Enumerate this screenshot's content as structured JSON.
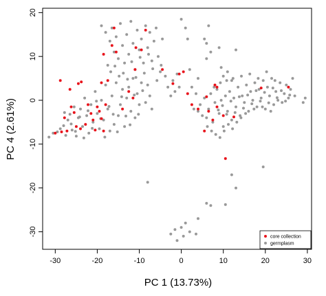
{
  "chart_data": {
    "type": "scatter",
    "title": "",
    "xlabel": "PC 1 (13.73%)",
    "ylabel": "PC 4 (2.61%)",
    "xlim": [
      -33,
      31
    ],
    "ylim": [
      -34,
      21
    ],
    "x_ticks": [
      -30,
      -20,
      -10,
      0,
      10,
      20,
      30
    ],
    "y_ticks": [
      -30,
      -20,
      -10,
      0,
      10,
      20
    ],
    "x_tick_labels": [
      "-30",
      "-20",
      "-10",
      "0",
      "10",
      "20",
      "30"
    ],
    "y_tick_labels": [
      "-30",
      "-20",
      "-10",
      "0",
      "10",
      "20"
    ],
    "grid": false,
    "legend": {
      "placement": "bottom-right",
      "entries": [
        {
          "label": "core collection",
          "color": "#e8141c"
        },
        {
          "label": "germplasm",
          "color": "#999999"
        }
      ]
    },
    "series": [
      {
        "name": "germplasm",
        "color": "#999999",
        "points": [
          [
            -31.5,
            -8.4
          ],
          [
            -30.5,
            -7.5
          ],
          [
            -29.5,
            -7.2
          ],
          [
            -28.8,
            -6.5
          ],
          [
            -28,
            -5.8
          ],
          [
            -27.5,
            -8
          ],
          [
            -27,
            -4.5
          ],
          [
            -26.5,
            -3.2
          ],
          [
            -26,
            -6.8
          ],
          [
            -25.5,
            -1.5
          ],
          [
            -25,
            -8.2
          ],
          [
            -24.5,
            -4
          ],
          [
            -24,
            -2
          ],
          [
            -23.5,
            -6
          ],
          [
            -23,
            0.5
          ],
          [
            -22.5,
            -3.5
          ],
          [
            -22,
            -7.5
          ],
          [
            -21.5,
            -1
          ],
          [
            -21,
            -5
          ],
          [
            -20.5,
            2
          ],
          [
            -20,
            -3
          ],
          [
            -19.5,
            -6.5
          ],
          [
            -19,
            0
          ],
          [
            -18.5,
            -4.5
          ],
          [
            -18,
            3.5
          ],
          [
            -17.5,
            -2
          ],
          [
            -17,
            -7
          ],
          [
            -16.5,
            1
          ],
          [
            -16,
            -5.5
          ],
          [
            -15.5,
            4
          ],
          [
            -15,
            -3.5
          ],
          [
            -14.5,
            -1
          ],
          [
            -14,
            2.5
          ],
          [
            -13.5,
            -6
          ],
          [
            -13,
            0.5
          ],
          [
            -12.5,
            3
          ],
          [
            -12,
            -2.5
          ],
          [
            -11.5,
            5
          ],
          [
            -11,
            -4
          ],
          [
            -10.5,
            1.5
          ],
          [
            -10,
            -1
          ],
          [
            -9.5,
            4
          ],
          [
            -27.8,
            -2.8
          ],
          [
            -26.2,
            -5.4
          ],
          [
            -25.2,
            -7.1
          ],
          [
            -24.2,
            -3.8
          ],
          [
            -23.2,
            -8.6
          ],
          [
            -22.2,
            -2.4
          ],
          [
            -21.2,
            -6.4
          ],
          [
            -20.2,
            -0.2
          ],
          [
            -19.2,
            -4.2
          ],
          [
            -18.2,
            -8.4
          ],
          [
            -17.2,
            -1.4
          ],
          [
            -16.2,
            -3.2
          ],
          [
            -15.2,
            -7.2
          ],
          [
            -14.2,
            0.8
          ],
          [
            -13.2,
            -3.6
          ],
          [
            -12.2,
            -5.6
          ],
          [
            -11.2,
            1.2
          ],
          [
            -10.2,
            -3.2
          ],
          [
            -9.2,
            2.2
          ],
          [
            -8.5,
            -0.5
          ],
          [
            -8,
            3.5
          ],
          [
            -7.5,
            1
          ],
          [
            -7,
            -2
          ],
          [
            -19,
            17
          ],
          [
            -18,
            15.5
          ],
          [
            -17,
            13.5
          ],
          [
            -16.5,
            16.5
          ],
          [
            -16,
            11
          ],
          [
            -15.5,
            14.5
          ],
          [
            -15,
            9.5
          ],
          [
            -14.5,
            17.5
          ],
          [
            -14,
            12.5
          ],
          [
            -13.5,
            8.5
          ],
          [
            -13,
            15
          ],
          [
            -12.5,
            10.5
          ],
          [
            -12,
            18
          ],
          [
            -11.5,
            13
          ],
          [
            -11,
            7
          ],
          [
            -10.5,
            16
          ],
          [
            -10,
            11.5
          ],
          [
            -9.5,
            14
          ],
          [
            -9,
            8.5
          ],
          [
            -8.5,
            17
          ],
          [
            -8,
            12
          ],
          [
            -7.5,
            15.5
          ],
          [
            -7,
            9
          ],
          [
            -6.5,
            13.5
          ],
          [
            -6,
            16.5
          ],
          [
            -5.5,
            10
          ],
          [
            -5,
            6.5
          ],
          [
            -4.5,
            14
          ],
          [
            -17.5,
            8
          ],
          [
            -16.8,
            6.5
          ],
          [
            -15.8,
            7.8
          ],
          [
            -14.8,
            5.5
          ],
          [
            -13.8,
            6.2
          ],
          [
            -12.8,
            4.8
          ],
          [
            -11.8,
            8.8
          ],
          [
            -10.8,
            5.2
          ],
          [
            -9.8,
            9.8
          ],
          [
            -8.8,
            6.2
          ],
          [
            -7.8,
            10.5
          ],
          [
            -6.8,
            7.2
          ],
          [
            -5.8,
            4.5
          ],
          [
            -4.8,
            8
          ],
          [
            -3.8,
            5.5
          ],
          [
            -3.2,
            3
          ],
          [
            -2.5,
            1
          ],
          [
            -2,
            4.5
          ],
          [
            -1.5,
            2
          ],
          [
            -1,
            6
          ],
          [
            -0.5,
            3
          ],
          [
            0,
            18.5
          ],
          [
            1,
            16.5
          ],
          [
            1.5,
            14
          ],
          [
            2,
            7
          ],
          [
            2.5,
            3
          ],
          [
            3,
            -2
          ],
          [
            3.5,
            1.5
          ],
          [
            4,
            5
          ],
          [
            5.5,
            14
          ],
          [
            6,
            13
          ],
          [
            6,
            9.5
          ],
          [
            6.5,
            17
          ],
          [
            7,
            11
          ],
          [
            9,
            12
          ],
          [
            9.5,
            7.5
          ],
          [
            10,
            5.5
          ],
          [
            11,
            6.5
          ],
          [
            12,
            4.5
          ],
          [
            13,
            11.5
          ],
          [
            4,
            -2.5
          ],
          [
            4.5,
            -1
          ],
          [
            5,
            -3.5
          ],
          [
            5.5,
            0.5
          ],
          [
            6,
            -4
          ],
          [
            6.5,
            -2
          ],
          [
            7,
            1.5
          ],
          [
            7.5,
            -5
          ],
          [
            8,
            -0.5
          ],
          [
            8.5,
            2.5
          ],
          [
            9,
            -3
          ],
          [
            9.5,
            0
          ],
          [
            10,
            -6
          ],
          [
            10.5,
            1
          ],
          [
            11,
            -2.5
          ],
          [
            11.5,
            2
          ],
          [
            12,
            -4.5
          ],
          [
            12.5,
            0.5
          ],
          [
            13,
            -1.5
          ],
          [
            13.5,
            3
          ],
          [
            14,
            -3.5
          ],
          [
            14.5,
            1
          ],
          [
            15,
            -0.5
          ],
          [
            15.5,
            3.5
          ],
          [
            16,
            -2.5
          ],
          [
            16.5,
            2
          ],
          [
            17,
            0
          ],
          [
            17.5,
            4
          ],
          [
            18,
            -1.5
          ],
          [
            18.5,
            2.5
          ],
          [
            19,
            0.5
          ],
          [
            19.5,
            4.5
          ],
          [
            20,
            -2
          ],
          [
            20.5,
            3
          ],
          [
            21,
            1
          ],
          [
            21.5,
            5
          ],
          [
            22,
            -1
          ],
          [
            22.5,
            2
          ],
          [
            23,
            0
          ],
          [
            23.5,
            4
          ],
          [
            24,
            -0.5
          ],
          [
            24.5,
            1.5
          ],
          [
            25,
            3.5
          ],
          [
            25.5,
            0.5
          ],
          [
            26,
            2.5
          ],
          [
            26.5,
            5
          ],
          [
            27,
            1
          ],
          [
            6.2,
            -6
          ],
          [
            7.2,
            -7
          ],
          [
            8.2,
            -7.8
          ],
          [
            9.2,
            -8.5
          ],
          [
            10.2,
            -7
          ],
          [
            11.2,
            -5.5
          ],
          [
            12.2,
            -6.5
          ],
          [
            13.2,
            -5
          ],
          [
            14.2,
            -4
          ],
          [
            8.8,
            -2.2
          ],
          [
            9.8,
            -1.2
          ],
          [
            10.8,
            -3.2
          ],
          [
            11.8,
            -0.2
          ],
          [
            12.8,
            -2.8
          ],
          [
            13.8,
            0.8
          ],
          [
            14.8,
            -1.8
          ],
          [
            15.8,
            1.2
          ],
          [
            16.8,
            -0.8
          ],
          [
            17.8,
            2.2
          ],
          [
            18.8,
            -0.2
          ],
          [
            19.8,
            1.8
          ],
          [
            20.8,
            -0.6
          ],
          [
            21.8,
            2.8
          ],
          [
            22.8,
            0.6
          ],
          [
            23.8,
            2.2
          ],
          [
            24.8,
            -0.2
          ],
          [
            25.8,
            1.2
          ],
          [
            7.8,
            3
          ],
          [
            9.3,
            4
          ],
          [
            10.8,
            4.5
          ],
          [
            12.3,
            5
          ],
          [
            14.3,
            5.5
          ],
          [
            16.3,
            6
          ],
          [
            18.3,
            5
          ],
          [
            20.3,
            6.5
          ],
          [
            22.3,
            4.5
          ],
          [
            15.3,
            -3
          ],
          [
            17.3,
            -2
          ],
          [
            19.3,
            -1.5
          ],
          [
            21.3,
            -2.5
          ],
          [
            29,
            -0.5
          ],
          [
            29.5,
            0.5
          ],
          [
            19.5,
            -15.2
          ],
          [
            -8,
            -18.7
          ],
          [
            12,
            -17
          ],
          [
            13,
            -20
          ],
          [
            6,
            -23.5
          ],
          [
            7,
            -24
          ],
          [
            10.5,
            -23.8
          ],
          [
            -2.5,
            -30.5
          ],
          [
            -1.5,
            -29.5
          ],
          [
            -1,
            -32
          ],
          [
            0,
            -29
          ],
          [
            0.5,
            -31
          ],
          [
            1,
            -28
          ],
          [
            2,
            -30
          ],
          [
            4,
            -27
          ],
          [
            3.5,
            -30.5
          ]
        ]
      },
      {
        "name": "core collection",
        "color": "#e8141c",
        "points": [
          [
            -28.8,
            4.5
          ],
          [
            -30,
            -7.5
          ],
          [
            -28.5,
            -7.2
          ],
          [
            -27.8,
            -4
          ],
          [
            -27.2,
            -7
          ],
          [
            -26.5,
            2.5
          ],
          [
            -26.2,
            -1.5
          ],
          [
            -25.5,
            -2.8
          ],
          [
            -25,
            -6
          ],
          [
            -24.5,
            3.8
          ],
          [
            -24,
            -6.5
          ],
          [
            -23.8,
            4.2
          ],
          [
            -22.8,
            -5.5
          ],
          [
            -22.2,
            -1
          ],
          [
            -21.5,
            -3
          ],
          [
            -21,
            -4.5
          ],
          [
            -20.5,
            -6.8
          ],
          [
            -20,
            -1.5
          ],
          [
            -19.5,
            -2.5
          ],
          [
            -19,
            -4.2
          ],
          [
            -19,
            4
          ],
          [
            -18.5,
            -7
          ],
          [
            -18,
            -1
          ],
          [
            -18.5,
            10.5
          ],
          [
            -17.5,
            4.5
          ],
          [
            -16.5,
            12.5
          ],
          [
            -16,
            16.5
          ],
          [
            -15.5,
            11
          ],
          [
            -14,
            -2
          ],
          [
            -12.5,
            2
          ],
          [
            -11.5,
            0.5
          ],
          [
            -11,
            7
          ],
          [
            -10.8,
            12
          ],
          [
            -9.5,
            11.5
          ],
          [
            -8.5,
            16
          ],
          [
            -4.5,
            7
          ],
          [
            -2,
            3.8
          ],
          [
            -0.5,
            6
          ],
          [
            0.5,
            6.5
          ],
          [
            1.5,
            1.5
          ],
          [
            2.5,
            -1
          ],
          [
            4,
            -2
          ],
          [
            5.5,
            -7
          ],
          [
            6,
            0.8
          ],
          [
            8,
            3.5
          ],
          [
            8.5,
            3
          ],
          [
            8.5,
            -1.5
          ],
          [
            10,
            -3.5
          ],
          [
            10.5,
            -13.3
          ],
          [
            12.5,
            -3.8
          ],
          [
            19,
            2.8
          ],
          [
            25.5,
            3
          ],
          [
            6.5,
            -2.5
          ],
          [
            7.5,
            -4.5
          ]
        ]
      }
    ]
  }
}
